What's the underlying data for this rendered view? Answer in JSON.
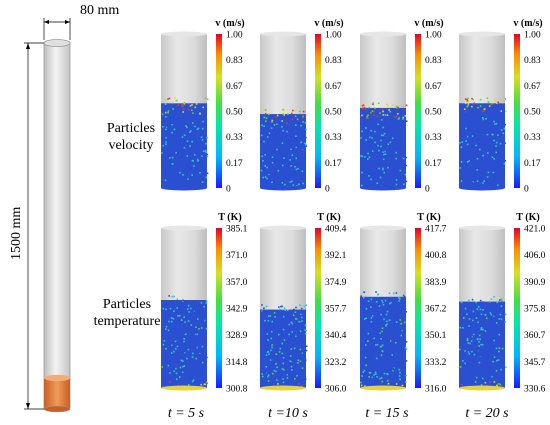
{
  "tube": {
    "diameter_label": "80 mm",
    "height_label": "1500 mm"
  },
  "rows": [
    {
      "label_line1": "Particles",
      "label_line2": "velocity",
      "colorbar_title": "v (m/s)",
      "fill_fraction": [
        0.55,
        0.48,
        0.52,
        0.55
      ],
      "colorbars": [
        [
          "1.00",
          "0.83",
          "0.67",
          "0.50",
          "0.33",
          "0.17",
          "0"
        ],
        [
          "1.00",
          "0.83",
          "0.67",
          "0.50",
          "0.33",
          "0.17",
          "0"
        ],
        [
          "1.00",
          "0.83",
          "0.67",
          "0.50",
          "0.33",
          "0.17",
          "0"
        ],
        [
          "1.00",
          "0.83",
          "0.67",
          "0.50",
          "0.33",
          "0.17",
          "0"
        ]
      ]
    },
    {
      "label_line1": "Particles",
      "label_line2": "temperature",
      "colorbar_title": "T (K)",
      "fill_fraction": [
        0.55,
        0.49,
        0.57,
        0.54
      ],
      "colorbars": [
        [
          "385.1",
          "371.0",
          "357.0",
          "342.9",
          "328.9",
          "314.8",
          "300.8"
        ],
        [
          "409.4",
          "392.1",
          "374.9",
          "357.7",
          "340.4",
          "323.2",
          "306.0"
        ],
        [
          "417.7",
          "400.8",
          "383.9",
          "367.2",
          "350.1",
          "333.2",
          "316.0"
        ],
        [
          "421.0",
          "406.0",
          "390.9",
          "375.8",
          "360.7",
          "345.7",
          "330.6"
        ]
      ]
    }
  ],
  "time_labels": [
    "t = 5 s",
    "t =10 s",
    "t = 15 s",
    "t = 20 s"
  ],
  "colors": {
    "cylinder_gray": "#d9d9d9",
    "particle_blue": "#2a4fd0",
    "particle_cyan": "#2ec7c9",
    "particle_green": "#5fd43a",
    "particle_yellow": "#e6d23a",
    "particle_red": "#e0402a",
    "bed_orange": "#e07a3a"
  }
}
